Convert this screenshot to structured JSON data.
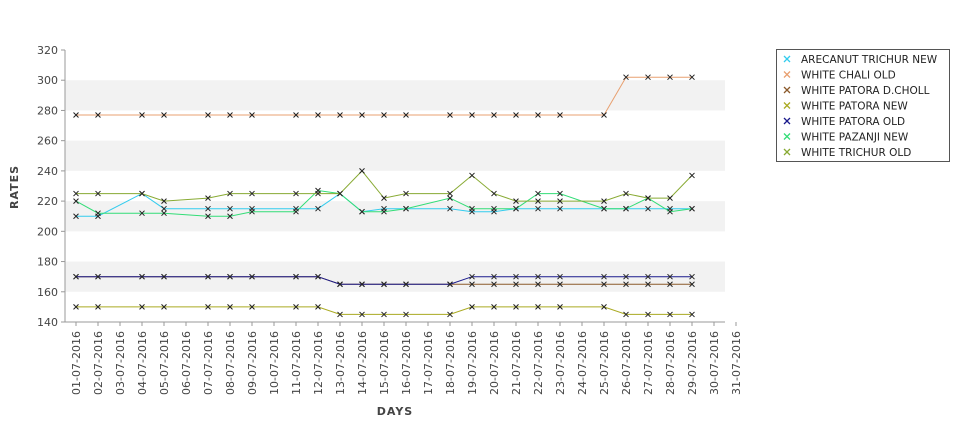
{
  "chart_data": {
    "type": "line",
    "xlabel": "DAYS",
    "ylabel": "RATES",
    "ylim": [
      140,
      320
    ],
    "yticks": [
      140,
      160,
      180,
      200,
      220,
      240,
      260,
      280,
      300,
      320
    ],
    "x_tick_labels": [
      "01-07-2016",
      "02-07-2016",
      "03-07-2016",
      "04-07-2016",
      "05-07-2016",
      "06-07-2016",
      "07-07-2016",
      "08-07-2016",
      "09-07-2016",
      "10-07-2016",
      "11-07-2016",
      "12-07-2016",
      "13-07-2016",
      "14-07-2016",
      "15-07-2016",
      "16-07-2016",
      "17-07-2016",
      "18-07-2016",
      "19-07-2016",
      "20-07-2016",
      "21-07-2016",
      "22-07-2016",
      "23-07-2016",
      "24-07-2016",
      "25-07-2016",
      "26-07-2016",
      "27-07-2016",
      "28-07-2016",
      "29-07-2016",
      "30-07-2016",
      "31-07-2016"
    ],
    "grid": "alternating horizontal bands",
    "legend_position": "right",
    "series": [
      {
        "name": "ARECANUT TRICHUR NEW",
        "color": "#33ccee",
        "points": [
          [
            1,
            210
          ],
          [
            2,
            210
          ],
          [
            4,
            225
          ],
          [
            5,
            215
          ],
          [
            7,
            215
          ],
          [
            8,
            215
          ],
          [
            9,
            215
          ],
          [
            11,
            215
          ],
          [
            12,
            215
          ],
          [
            13,
            225
          ],
          [
            14,
            213
          ],
          [
            15,
            215
          ],
          [
            16,
            215
          ],
          [
            18,
            215
          ],
          [
            19,
            213
          ],
          [
            20,
            213
          ],
          [
            21,
            215
          ],
          [
            22,
            215
          ],
          [
            23,
            215
          ],
          [
            25,
            215
          ],
          [
            26,
            215
          ],
          [
            27,
            215
          ],
          [
            28,
            215
          ],
          [
            29,
            215
          ]
        ]
      },
      {
        "name": "WHITE CHALI OLD",
        "color": "#e8a070",
        "points": [
          [
            1,
            277
          ],
          [
            2,
            277
          ],
          [
            4,
            277
          ],
          [
            5,
            277
          ],
          [
            7,
            277
          ],
          [
            8,
            277
          ],
          [
            9,
            277
          ],
          [
            11,
            277
          ],
          [
            12,
            277
          ],
          [
            13,
            277
          ],
          [
            14,
            277
          ],
          [
            15,
            277
          ],
          [
            16,
            277
          ],
          [
            18,
            277
          ],
          [
            19,
            277
          ],
          [
            20,
            277
          ],
          [
            21,
            277
          ],
          [
            22,
            277
          ],
          [
            23,
            277
          ],
          [
            25,
            277
          ],
          [
            26,
            302
          ],
          [
            27,
            302
          ],
          [
            28,
            302
          ],
          [
            29,
            302
          ]
        ]
      },
      {
        "name": "WHITE PATORA D.CHOLL",
        "color": "#8b5a2b",
        "points": [
          [
            1,
            170
          ],
          [
            2,
            170
          ],
          [
            4,
            170
          ],
          [
            5,
            170
          ],
          [
            7,
            170
          ],
          [
            8,
            170
          ],
          [
            9,
            170
          ],
          [
            11,
            170
          ],
          [
            12,
            170
          ],
          [
            13,
            165
          ],
          [
            14,
            165
          ],
          [
            15,
            165
          ],
          [
            16,
            165
          ],
          [
            18,
            165
          ],
          [
            19,
            165
          ],
          [
            20,
            165
          ],
          [
            21,
            165
          ],
          [
            22,
            165
          ],
          [
            23,
            165
          ],
          [
            25,
            165
          ],
          [
            26,
            165
          ],
          [
            27,
            165
          ],
          [
            28,
            165
          ],
          [
            29,
            165
          ]
        ]
      },
      {
        "name": "WHITE PATORA NEW",
        "color": "#aaaa22",
        "points": [
          [
            1,
            150
          ],
          [
            2,
            150
          ],
          [
            4,
            150
          ],
          [
            5,
            150
          ],
          [
            7,
            150
          ],
          [
            8,
            150
          ],
          [
            9,
            150
          ],
          [
            11,
            150
          ],
          [
            12,
            150
          ],
          [
            13,
            145
          ],
          [
            14,
            145
          ],
          [
            15,
            145
          ],
          [
            16,
            145
          ],
          [
            18,
            145
          ],
          [
            19,
            150
          ],
          [
            20,
            150
          ],
          [
            21,
            150
          ],
          [
            22,
            150
          ],
          [
            23,
            150
          ],
          [
            25,
            150
          ],
          [
            26,
            145
          ],
          [
            27,
            145
          ],
          [
            28,
            145
          ],
          [
            29,
            145
          ]
        ]
      },
      {
        "name": "WHITE PATORA OLD",
        "color": "#1a1a8c",
        "points": [
          [
            1,
            170
          ],
          [
            2,
            170
          ],
          [
            4,
            170
          ],
          [
            5,
            170
          ],
          [
            7,
            170
          ],
          [
            8,
            170
          ],
          [
            9,
            170
          ],
          [
            11,
            170
          ],
          [
            12,
            170
          ],
          [
            13,
            165
          ],
          [
            14,
            165
          ],
          [
            15,
            165
          ],
          [
            16,
            165
          ],
          [
            18,
            165
          ],
          [
            19,
            170
          ],
          [
            20,
            170
          ],
          [
            21,
            170
          ],
          [
            22,
            170
          ],
          [
            23,
            170
          ],
          [
            25,
            170
          ],
          [
            26,
            170
          ],
          [
            27,
            170
          ],
          [
            28,
            170
          ],
          [
            29,
            170
          ]
        ]
      },
      {
        "name": "WHITE PAZANJI NEW",
        "color": "#33dd77",
        "points": [
          [
            1,
            220
          ],
          [
            2,
            212
          ],
          [
            4,
            212
          ],
          [
            5,
            212
          ],
          [
            7,
            210
          ],
          [
            8,
            210
          ],
          [
            9,
            213
          ],
          [
            11,
            213
          ],
          [
            12,
            227
          ],
          [
            13,
            225
          ],
          [
            14,
            213
          ],
          [
            15,
            213
          ],
          [
            16,
            215
          ],
          [
            18,
            222
          ],
          [
            19,
            215
          ],
          [
            20,
            215
          ],
          [
            21,
            215
          ],
          [
            22,
            225
          ],
          [
            23,
            225
          ],
          [
            25,
            215
          ],
          [
            26,
            215
          ],
          [
            27,
            222
          ],
          [
            28,
            213
          ],
          [
            29,
            215
          ]
        ]
      },
      {
        "name": "WHITE TRICHUR OLD",
        "color": "#88aa33",
        "points": [
          [
            1,
            225
          ],
          [
            2,
            225
          ],
          [
            4,
            225
          ],
          [
            5,
            220
          ],
          [
            7,
            222
          ],
          [
            8,
            225
          ],
          [
            9,
            225
          ],
          [
            11,
            225
          ],
          [
            12,
            225
          ],
          [
            13,
            225
          ],
          [
            14,
            240
          ],
          [
            15,
            222
          ],
          [
            16,
            225
          ],
          [
            18,
            225
          ],
          [
            19,
            237
          ],
          [
            20,
            225
          ],
          [
            21,
            220
          ],
          [
            22,
            220
          ],
          [
            23,
            220
          ],
          [
            25,
            220
          ],
          [
            26,
            225
          ],
          [
            27,
            222
          ],
          [
            28,
            222
          ],
          [
            29,
            237
          ]
        ]
      }
    ]
  }
}
